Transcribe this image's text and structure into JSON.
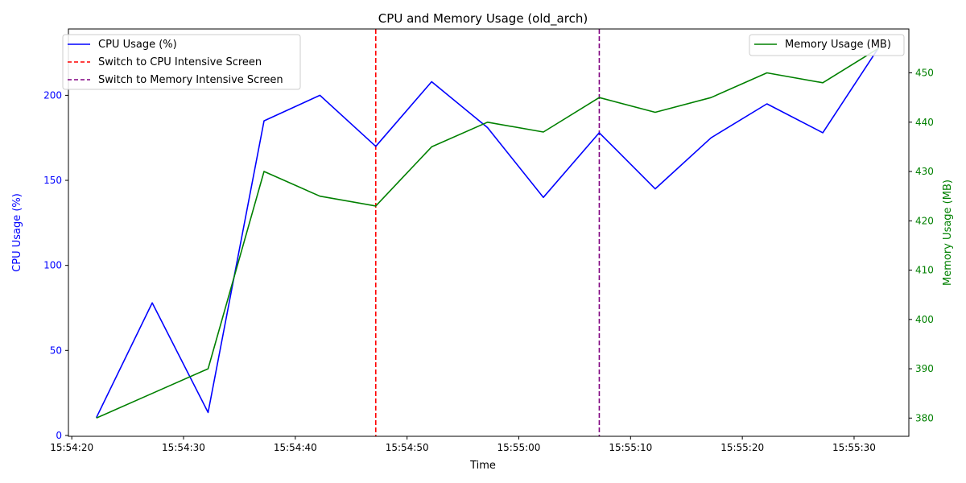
{
  "chart_data": {
    "type": "line",
    "title": "CPU and Memory Usage (old_arch)",
    "xlabel": "Time",
    "ylabel_left": "CPU Usage (%)",
    "ylabel_right": "Memory Usage (MB)",
    "x_ticks": [
      "15:54:20",
      "15:54:30",
      "15:54:40",
      "15:54:50",
      "15:55:00",
      "15:55:10",
      "15:55:20",
      "15:55:30"
    ],
    "x_tick_seconds": [
      0,
      10,
      20,
      30,
      40,
      50,
      60,
      70
    ],
    "x_seconds": [
      2.2,
      7.2,
      12.2,
      17.2,
      22.2,
      27.2,
      32.2,
      37.2,
      42.2,
      47.2,
      52.2,
      57.2,
      62.2,
      67.2,
      72.2
    ],
    "xlim_seconds": [
      -0.3,
      74.9
    ],
    "y_left_ticks": [
      0,
      50,
      100,
      150,
      200
    ],
    "y_left_lim": [
      -0.5,
      239
    ],
    "y_right_ticks": [
      380,
      390,
      400,
      410,
      420,
      430,
      440,
      450
    ],
    "y_right_lim": [
      376.3,
      458.9
    ],
    "series": [
      {
        "name": "CPU Usage (%)",
        "axis": "left",
        "color": "#0000ff",
        "values": [
          10.5,
          78,
          13.5,
          185,
          200,
          170,
          208,
          181,
          140,
          178,
          145,
          175,
          195,
          178,
          228
        ]
      },
      {
        "name": "Memory Usage (MB)",
        "axis": "right",
        "color": "#008000",
        "values": [
          380,
          385,
          390,
          430,
          425,
          423,
          435,
          440,
          438,
          445,
          442,
          445,
          450,
          448,
          455
        ]
      }
    ],
    "vlines": [
      {
        "label": "Switch to CPU Intensive Screen",
        "x_seconds": 27.2,
        "color": "#ff0000",
        "style": "dashed"
      },
      {
        "label": "Switch to Memory Intensive Screen",
        "x_seconds": 47.2,
        "color": "#800080",
        "style": "dashed"
      }
    ],
    "legend_left": [
      "CPU Usage (%)",
      "Switch to CPU Intensive Screen",
      "Switch to Memory Intensive Screen"
    ],
    "legend_right": [
      "Memory Usage (MB)"
    ],
    "legend_left_position": "top-left",
    "legend_right_position": "top-right",
    "grid": false
  }
}
